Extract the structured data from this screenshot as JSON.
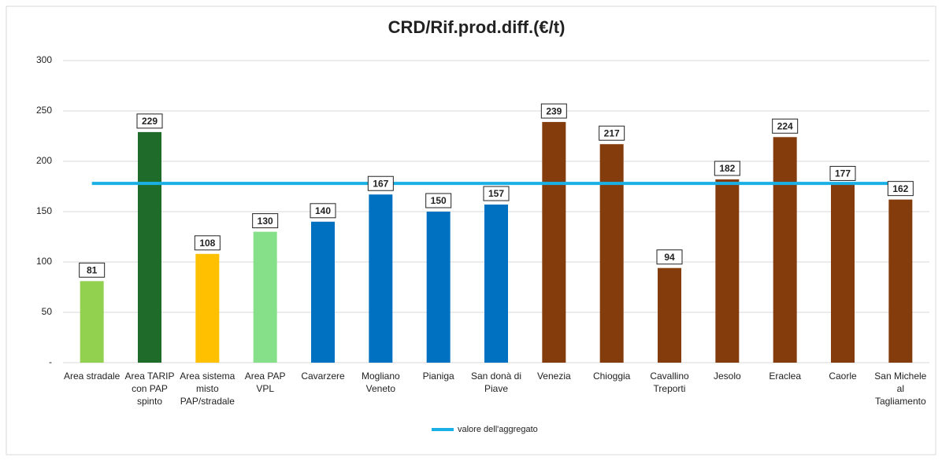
{
  "chart_data": {
    "type": "bar",
    "title": "CRD/Rif.prod.diff.(€/t)",
    "categories": [
      "Area stradale",
      "Area TARIP con PAP spinto",
      "Area sistema misto PAP/stradale",
      "Area PAP VPL",
      "Cavarzere",
      "Mogliano Veneto",
      "Pianiga",
      "San donà di Piave",
      "Venezia",
      "Chioggia",
      "Cavallino Treporti",
      "Jesolo",
      "Eraclea",
      "Caorle",
      "San Michele al Tagliamento"
    ],
    "values": [
      81,
      229,
      108,
      130,
      140,
      167,
      150,
      157,
      239,
      217,
      94,
      182,
      224,
      177,
      162
    ],
    "colors": [
      "#92d050",
      "#1e6b2a",
      "#ffc000",
      "#86e08a",
      "#0070c0",
      "#0070c0",
      "#0070c0",
      "#0070c0",
      "#843c0c",
      "#843c0c",
      "#843c0c",
      "#843c0c",
      "#843c0c",
      "#843c0c",
      "#843c0c"
    ],
    "reference_line": {
      "name": "valore dell'aggregato",
      "value": 178,
      "color": "#1ab0e6"
    },
    "ylim": [
      0,
      300
    ],
    "yticks": [
      {
        "value": 0,
        "label": "-"
      },
      50,
      100,
      150,
      200,
      250,
      300
    ],
    "grid": true
  }
}
